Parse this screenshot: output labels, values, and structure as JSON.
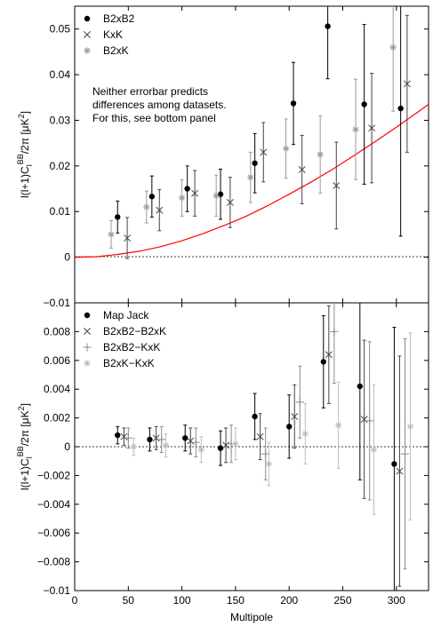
{
  "chart_data": [
    {
      "type": "scatter",
      "panel": "top",
      "ylabel": "l(l+1)C_l^{BB}/2π [μK²]",
      "xlim": [
        0,
        330
      ],
      "ylim": [
        -0.01,
        0.055
      ],
      "yticks": [
        -0.01,
        0,
        0.01,
        0.02,
        0.03,
        0.04,
        0.05
      ],
      "ytick_labels": [
        "−0.01",
        "0",
        "0.01",
        "0.02",
        "0.03",
        "0.04",
        "0.05"
      ],
      "legend_position": "top-left",
      "annotation": [
        "Neither errorbar predicts",
        "differences among datasets.",
        "For this, see bottom panel"
      ],
      "colors": {
        "black": "#000000",
        "dark": "#444444",
        "gray": "#9a9a9a",
        "model": "#ff0000"
      },
      "series": [
        {
          "name": "B2xB2",
          "marker": "dot",
          "color": "#000000",
          "x": [
            40,
            72,
            105,
            136,
            168,
            204,
            236,
            270,
            304
          ],
          "y": [
            0.0088,
            0.0133,
            0.015,
            0.0138,
            0.0206,
            0.0337,
            0.0506,
            0.0335,
            0.0326
          ],
          "err": [
            0.0035,
            0.0045,
            0.005,
            0.0055,
            0.0065,
            0.009,
            0.0115,
            0.0175,
            0.028
          ]
        },
        {
          "name": "KxK",
          "marker": "x",
          "color": "#444444",
          "x": [
            49,
            79,
            112,
            145,
            176,
            212,
            244,
            277,
            310
          ],
          "y": [
            0.0042,
            0.0103,
            0.014,
            0.012,
            0.023,
            0.0192,
            0.0157,
            0.0283,
            0.038
          ],
          "err": [
            0.0045,
            0.0045,
            0.005,
            0.0055,
            0.0065,
            0.0075,
            0.0095,
            0.012,
            0.015
          ]
        },
        {
          "name": "B2xK",
          "marker": "star",
          "color": "#9a9a9a",
          "x": [
            34,
            67,
            100,
            132,
            164,
            197,
            229,
            262,
            297
          ],
          "y": [
            0.005,
            0.011,
            0.013,
            0.0135,
            0.0175,
            0.0238,
            0.0225,
            0.028,
            0.046
          ],
          "err": [
            0.003,
            0.0035,
            0.004,
            0.0045,
            0.0055,
            0.0065,
            0.0085,
            0.011,
            0.014
          ]
        }
      ],
      "model_curve": {
        "name": "model",
        "x": [
          0,
          20,
          40,
          60,
          80,
          100,
          120,
          140,
          160,
          180,
          200,
          220,
          240,
          260,
          280,
          300,
          320,
          330
        ],
        "y": [
          0,
          0.0001,
          0.0006,
          0.0013,
          0.0023,
          0.0036,
          0.0052,
          0.007,
          0.009,
          0.0113,
          0.0138,
          0.0164,
          0.0192,
          0.0222,
          0.0253,
          0.0285,
          0.0318,
          0.0335
        ]
      }
    },
    {
      "type": "scatter",
      "panel": "bottom",
      "xlabel": "Multipole",
      "ylabel": "l(l+1)C_l^{BB}/2π [μK²]",
      "xlim": [
        0,
        330
      ],
      "ylim": [
        -0.01,
        0.01
      ],
      "xticks": [
        0,
        50,
        100,
        150,
        200,
        250,
        300
      ],
      "xtick_labels": [
        "0",
        "50",
        "100",
        "150",
        "200",
        "250",
        "300"
      ],
      "yticks": [
        -0.01,
        -0.008,
        -0.006,
        -0.004,
        -0.002,
        0,
        0.002,
        0.004,
        0.006,
        0.008
      ],
      "ytick_labels": [
        "−0.01",
        "−0.008",
        "−0.006",
        "−0.004",
        "−0.002",
        "0",
        "0.002",
        "0.004",
        "0.006",
        "0.008"
      ],
      "legend_position": "top-left",
      "series": [
        {
          "name": "Map Jack",
          "marker": "dot",
          "color": "#000000",
          "x": [
            40,
            70,
            103,
            136,
            168,
            200,
            232,
            266,
            298
          ],
          "y": [
            0.0008,
            0.0005,
            0.0006,
            -0.0001,
            0.0021,
            0.0014,
            0.0059,
            0.0042,
            -0.0012
          ],
          "err": [
            0.0006,
            0.0008,
            0.0009,
            0.0012,
            0.0016,
            0.0022,
            0.0032,
            0.0065,
            0.0095
          ]
        },
        {
          "name": "B2xB2−B2xK",
          "marker": "x",
          "color": "#444444",
          "x": [
            46,
            76,
            108,
            141,
            173,
            205,
            237,
            270,
            303
          ],
          "y": [
            0.0007,
            0.0006,
            0.0004,
            0.0001,
            0.0007,
            0.0021,
            0.0064,
            0.0019,
            -0.0017
          ],
          "err": [
            0.0006,
            0.0008,
            0.0009,
            0.0012,
            0.0016,
            0.0022,
            0.0034,
            0.0055,
            0.008
          ]
        },
        {
          "name": "B2xB2−KxK",
          "marker": "plus",
          "color": "#8a8a8a",
          "x": [
            50,
            81,
            113,
            146,
            178,
            210,
            242,
            275,
            308
          ],
          "y": [
            0.0006,
            0.0005,
            0.0003,
            0.0002,
            -0.0005,
            0.0031,
            0.008,
            0.0018,
            -0.0005
          ],
          "err": [
            0.0007,
            0.0009,
            0.001,
            0.0013,
            0.0018,
            0.0025,
            0.0036,
            0.0055,
            0.008
          ]
        },
        {
          "name": "B2xK−KxK",
          "marker": "star",
          "color": "#bdbdbd",
          "x": [
            55,
            85,
            118,
            150,
            181,
            215,
            246,
            279,
            313
          ],
          "y": [
            0.0,
            0.0001,
            -0.0002,
            0.0002,
            -0.0012,
            0.0009,
            0.0015,
            -0.0002,
            0.0014
          ],
          "err": [
            0.0006,
            0.0008,
            0.0009,
            0.0011,
            0.0015,
            0.0021,
            0.003,
            0.0045,
            0.0065
          ]
        }
      ]
    }
  ]
}
